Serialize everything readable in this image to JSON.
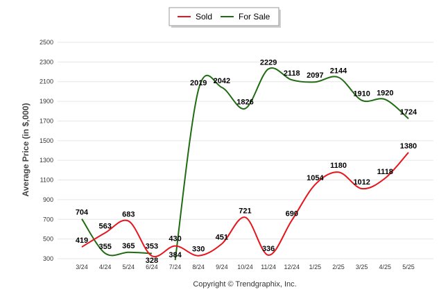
{
  "chart_data": {
    "type": "line",
    "ylabel": "Average Price (in $,000)",
    "credit": "Copyright © Trendgraphix, Inc.",
    "categories": [
      "3/24",
      "4/24",
      "5/24",
      "6/24",
      "7/24",
      "8/24",
      "9/24",
      "10/24",
      "11/24",
      "12/24",
      "1/25",
      "2/25",
      "3/25",
      "4/25",
      "5/25"
    ],
    "yticks": [
      300,
      500,
      700,
      900,
      1100,
      1300,
      1500,
      1700,
      1900,
      2100,
      2300,
      2500
    ],
    "ylim": [
      300,
      2500
    ],
    "grid": true,
    "legend_position": "top-center",
    "series": [
      {
        "name": "Sold",
        "color": "#e8141b",
        "values": [
          419,
          563,
          683,
          328,
          430,
          330,
          451,
          721,
          336,
          690,
          1054,
          1180,
          1012,
          1118,
          1380
        ]
      },
      {
        "name": "For Sale",
        "color": "#1f6b11",
        "values": [
          704,
          355,
          365,
          353,
          384,
          2019,
          2042,
          1826,
          2229,
          2118,
          2097,
          2144,
          1910,
          1920,
          1724
        ]
      }
    ]
  }
}
